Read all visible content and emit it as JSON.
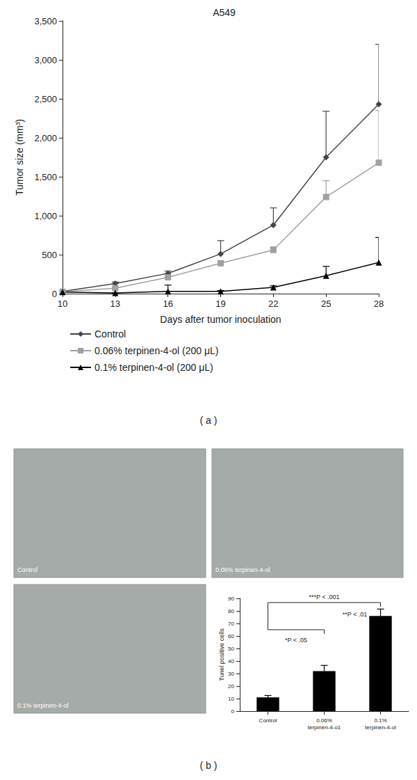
{
  "chart_data": [
    {
      "type": "line",
      "title": "A549",
      "x_label": "Days after tumor inoculation",
      "y_label": "Tumor size (mm³)",
      "x": [
        10,
        13,
        16,
        19,
        22,
        25,
        28
      ],
      "xlim": [
        10,
        28
      ],
      "xticks": [
        10,
        13,
        16,
        19,
        22,
        25,
        28
      ],
      "ylim": [
        0,
        3500
      ],
      "yticks": [
        0,
        500,
        1000,
        1500,
        2000,
        2500,
        3000,
        3500
      ],
      "grid": false,
      "legend": "bottom",
      "series": [
        {
          "name": "Control",
          "color": "#444444",
          "marker": "diamond",
          "values": [
            30,
            130,
            260,
            510,
            880,
            1750,
            2430
          ],
          "errors": [
            0,
            20,
            30,
            170,
            220,
            590,
            770
          ]
        },
        {
          "name": "0.06% terpinen-4-ol (200 μL)",
          "color": "#a0a0a0",
          "marker": "square",
          "values": [
            25,
            70,
            210,
            390,
            560,
            1240,
            1680
          ],
          "errors": [
            0,
            10,
            20,
            30,
            40,
            210,
            670
          ]
        },
        {
          "name": "0.1% terpinen-4-ol (200 μL)",
          "color": "#000000",
          "marker": "triangle",
          "values": [
            20,
            10,
            30,
            30,
            80,
            230,
            400
          ],
          "errors": [
            0,
            0,
            80,
            10,
            20,
            120,
            320
          ]
        }
      ]
    },
    {
      "type": "bar",
      "y_label": "Tunel positive cells",
      "categories": [
        "Control",
        "0.06%\nterpinen-4-o1",
        "0.1%\nterpinen-4-ol"
      ],
      "values": [
        11,
        32,
        76
      ],
      "errors": [
        1.5,
        4.5,
        5.5
      ],
      "color": "#000000",
      "ylim": [
        0,
        90
      ],
      "yticks": [
        0,
        10,
        20,
        30,
        40,
        50,
        60,
        70,
        80,
        90
      ],
      "grid": false,
      "annotations": [
        {
          "text": "***P < .001",
          "between": [
            0,
            2
          ]
        },
        {
          "text": "*P < .05",
          "between": [
            0,
            1
          ]
        },
        {
          "text": "**P < .01",
          "between": [
            1,
            2
          ]
        }
      ]
    }
  ],
  "images": [
    {
      "label": "Control"
    },
    {
      "label": "0.06% terpinen-4-ol"
    },
    {
      "label": "0.1% terpinen-4-ol"
    }
  ],
  "panel_labels": [
    "( a )",
    "( b )"
  ]
}
